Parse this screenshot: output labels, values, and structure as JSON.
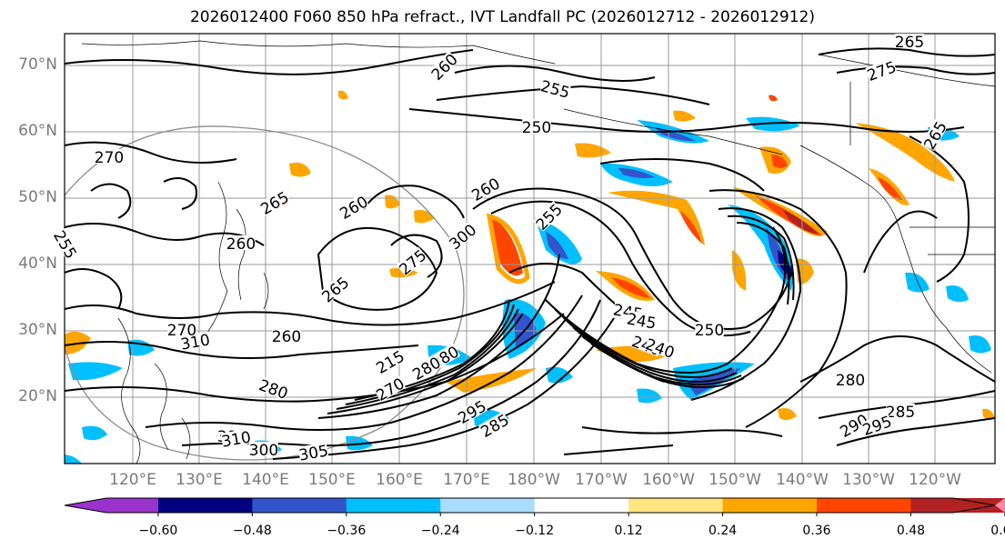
{
  "title": "2026012400 F060 850 hPa refract., IVT Landfall PC (2026012712 - 2026012912)",
  "lat_labels": [
    "70°N",
    "60°N",
    "50°N",
    "40°N",
    "30°N",
    "20°N"
  ],
  "lon_labels": [
    "120°E",
    "130°E",
    "140°E",
    "150°E",
    "160°E",
    "170°E",
    "180°W",
    "170°W",
    "160°W",
    "150°W",
    "140°W",
    "130°W",
    "120°W"
  ],
  "colorbar": {
    "colors": [
      "#9933cc",
      "#000080",
      "#3355cc",
      "#00bfff",
      "#aadcff",
      "#ffffff",
      "#ffe680",
      "#ffa500",
      "#ff4500",
      "#b22222",
      "#ff88aa"
    ],
    "tick_labels": [
      "−0.60",
      "−0.48",
      "−0.36",
      "−0.24",
      "−0.12",
      "0.12",
      "0.24",
      "0.36",
      "0.48",
      "0.60"
    ]
  },
  "contour_labels": [
    "270",
    "265",
    "260",
    "255",
    "250",
    "245",
    "240",
    "275",
    "280",
    "285",
    "290",
    "295",
    "300",
    "305",
    "310",
    "215",
    "275",
    "260",
    "265",
    "260",
    "280",
    "270",
    "265",
    "250",
    "245",
    "240",
    "255",
    "280",
    "295",
    "300",
    "260",
    "310",
    "305",
    "285",
    "280",
    "260",
    "270",
    "265",
    "255"
  ]
}
